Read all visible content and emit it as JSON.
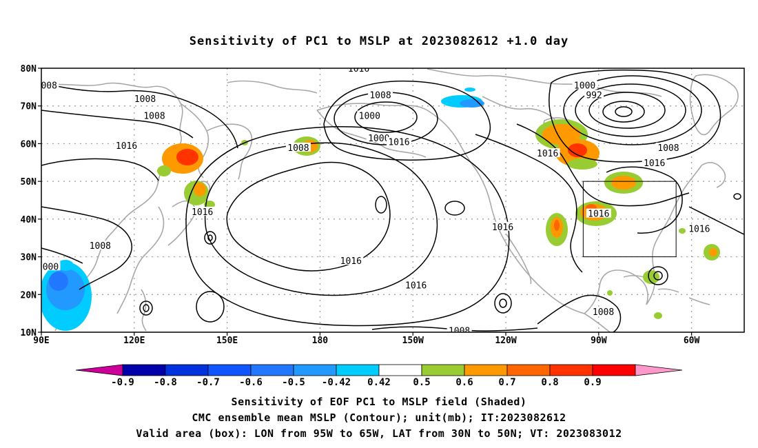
{
  "title": "Sensitivity of PC1 to MSLP at 2023082612 +1.0 day",
  "map": {
    "lon_ticks": [
      {
        "lon": 90,
        "label": "90E"
      },
      {
        "lon": 120,
        "label": "120E"
      },
      {
        "lon": 150,
        "label": "150E"
      },
      {
        "lon": 180,
        "label": "180"
      },
      {
        "lon": 210,
        "label": "150W"
      },
      {
        "lon": 240,
        "label": "120W"
      },
      {
        "lon": 270,
        "label": "90W"
      },
      {
        "lon": 300,
        "label": "60W"
      }
    ],
    "lat_ticks": [
      {
        "lat": 80,
        "label": "80N"
      },
      {
        "lat": 70,
        "label": "70N"
      },
      {
        "lat": 60,
        "label": "60N"
      },
      {
        "lat": 50,
        "label": "50N"
      },
      {
        "lat": 40,
        "label": "40N"
      },
      {
        "lat": 30,
        "label": "30N"
      },
      {
        "lat": 20,
        "label": "20N"
      },
      {
        "lat": 10,
        "label": "10N"
      }
    ],
    "extent": {
      "lon_min": 90,
      "lon_max": 317,
      "lat_min": 10,
      "lat_max": 80
    },
    "valid_box": {
      "lon_min": 265,
      "lon_max": 295,
      "lat_min": 30,
      "lat_max": 50
    },
    "contour_labels": [
      {
        "text": "008",
        "lon": 92.5,
        "lat": 75.5
      },
      {
        "text": "1008",
        "lon": 123.5,
        "lat": 72.0
      },
      {
        "text": "1008",
        "lon": 126.5,
        "lat": 67.5
      },
      {
        "text": "1016",
        "lon": 117.5,
        "lat": 59.5
      },
      {
        "text": "1008",
        "lon": 173.0,
        "lat": 59.0
      },
      {
        "text": "1016",
        "lon": 192.5,
        "lat": 80.0
      },
      {
        "text": "1008",
        "lon": 199.5,
        "lat": 73.0
      },
      {
        "text": "1000",
        "lon": 196.0,
        "lat": 67.5
      },
      {
        "text": "1000",
        "lon": 199.0,
        "lat": 61.5
      },
      {
        "text": "1016",
        "lon": 205.5,
        "lat": 60.5
      },
      {
        "text": "1000",
        "lon": 265.5,
        "lat": 75.5
      },
      {
        "text": "992",
        "lon": 268.5,
        "lat": 73.0
      },
      {
        "text": "1008",
        "lon": 292.5,
        "lat": 59.0
      },
      {
        "text": "1016",
        "lon": 288.0,
        "lat": 55.0
      },
      {
        "text": "1016",
        "lon": 253.5,
        "lat": 57.5
      },
      {
        "text": "1016",
        "lon": 142.0,
        "lat": 42.0
      },
      {
        "text": "1016",
        "lon": 270.0,
        "lat": 41.5
      },
      {
        "text": "1016",
        "lon": 239.0,
        "lat": 38.0
      },
      {
        "text": "1016",
        "lon": 302.5,
        "lat": 37.5
      },
      {
        "text": "1008",
        "lon": 109.0,
        "lat": 33.0
      },
      {
        "text": "000",
        "lon": 93.0,
        "lat": 27.5
      },
      {
        "text": "1016",
        "lon": 190.0,
        "lat": 29.0
      },
      {
        "text": "1016",
        "lon": 211.0,
        "lat": 22.5
      },
      {
        "text": "1008",
        "lon": 271.5,
        "lat": 15.5
      },
      {
        "text": "1008",
        "lon": 225.0,
        "lat": 10.5
      }
    ]
  },
  "colorbar": {
    "levels": [
      "-0.9",
      "-0.8",
      "-0.7",
      "-0.6",
      "-0.5",
      "-0.42",
      "0.42",
      "0.5",
      "0.6",
      "0.7",
      "0.8",
      "0.9"
    ],
    "colors": [
      "#cc0099",
      "#0000aa",
      "#0033dd",
      "#1155ff",
      "#2277ff",
      "#2299ff",
      "#00ccff",
      "#ffffff",
      "#99cc33",
      "#ff9900",
      "#ff6600",
      "#ff3300",
      "#ff0000",
      "#ff99cc"
    ]
  },
  "captions": [
    "Sensitivity of EOF PC1 to MSLP field (Shaded)",
    "CMC ensemble mean MSLP (Contour); unit(mb); IT:2023082612",
    "Valid area (box): LON from 95W to 65W, LAT from 30N to 50N; VT: 2023083012"
  ]
}
